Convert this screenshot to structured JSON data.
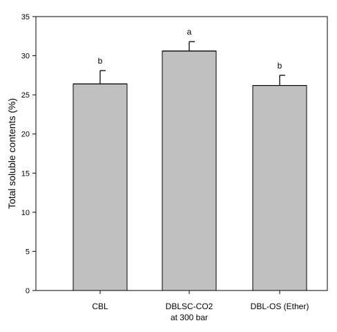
{
  "chart_data": {
    "type": "bar",
    "ylabel": "Total soluble contents (%)",
    "xlabel": "",
    "ylim": [
      0,
      35
    ],
    "yticks": [
      0,
      5,
      10,
      15,
      20,
      25,
      30,
      35
    ],
    "categories": [
      [
        "CBL"
      ],
      [
        "DBLSC-CO2",
        "at 300 bar"
      ],
      [
        "DBL-OS (Ether)"
      ]
    ],
    "values": [
      26.4,
      30.6,
      26.2
    ],
    "errors": [
      1.7,
      1.2,
      1.3
    ],
    "significance": [
      "b",
      "a",
      "b"
    ],
    "bar_color": "#c0c0c0",
    "grid": false
  }
}
